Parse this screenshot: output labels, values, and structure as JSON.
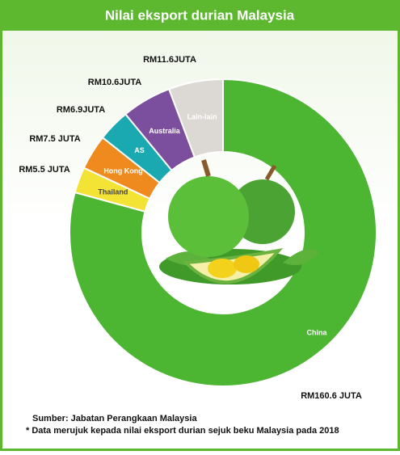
{
  "chart_data": {
    "type": "donut",
    "title": "Nilai eksport durian Malaysia",
    "categories": [
      "China",
      "Thailand",
      "Hong Kong",
      "AS",
      "Australia",
      "Lain-lain"
    ],
    "values": [
      160.6,
      5.5,
      7.5,
      6.9,
      10.6,
      11.6
    ],
    "value_labels": [
      "RM160.6 JUTA",
      "RM5.5 JUTA",
      "RM7.5 JUTA",
      "RM6.9JUTA",
      "RM10.6JUTA",
      "RM11.6JUTA"
    ],
    "colors": [
      "#4cb531",
      "#f3e335",
      "#ef8a1f",
      "#1aa9b0",
      "#7b4e9e",
      "#dcd8d3"
    ],
    "source": "Sumber: Jabatan Perangkaan Malaysia",
    "note": "* Data merujuk kepada nilai eksport durian sejuk beku Malaysia pada 2018"
  }
}
